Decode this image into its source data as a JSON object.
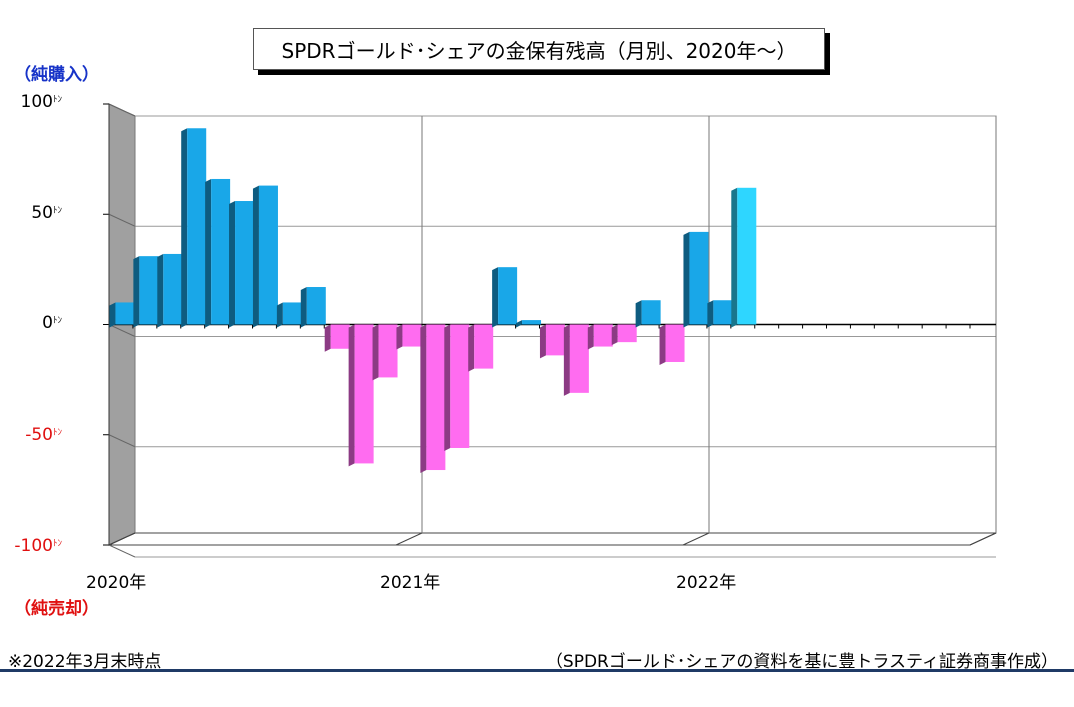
{
  "chart_data": {
    "type": "bar",
    "title": "SPDRゴールド･シェアの金保有残高（月別、2020年～）",
    "ylabel_top": "（純購入）",
    "ylabel_bottom": "（純売却）",
    "ylim": [
      -100,
      100
    ],
    "yticks": [
      {
        "value": 100,
        "label": "100",
        "unit": "ﾄﾝ"
      },
      {
        "value": 50,
        "label": "50",
        "unit": "ﾄﾝ"
      },
      {
        "value": 0,
        "label": "0",
        "unit": "ﾄﾝ"
      },
      {
        "value": -50,
        "label": "-50",
        "unit": "ﾄﾝ"
      },
      {
        "value": -100,
        "label": "-100",
        "unit": "ﾄﾝ"
      }
    ],
    "year_labels": [
      "2020年",
      "2021年",
      "2022年"
    ],
    "categories": [
      "2020-01",
      "2020-02",
      "2020-03",
      "2020-04",
      "2020-05",
      "2020-06",
      "2020-07",
      "2020-08",
      "2020-09",
      "2020-10",
      "2020-11",
      "2020-12",
      "2021-01",
      "2021-02",
      "2021-03",
      "2021-04",
      "2021-05",
      "2021-06",
      "2021-07",
      "2021-08",
      "2021-09",
      "2021-10",
      "2021-11",
      "2021-12",
      "2022-01",
      "2022-02",
      "2022-03"
    ],
    "values": [
      10,
      31,
      32,
      89,
      66,
      56,
      63,
      10,
      17,
      -11,
      -63,
      -24,
      -10,
      -66,
      -56,
      -20,
      26,
      2,
      -14,
      -31,
      -10,
      -8,
      11,
      -17,
      42,
      11,
      62
    ],
    "grid": true,
    "colors": {
      "positive": "#19a7e8",
      "positive_highlight": "#2ed6ff",
      "negative": "#ff6cf0",
      "wall": "#a0a0a0"
    }
  },
  "footnote": "※2022年3月末時点",
  "source": "（SPDRゴールド･シェアの資料を基に豊トラスティ証券商事作成）"
}
